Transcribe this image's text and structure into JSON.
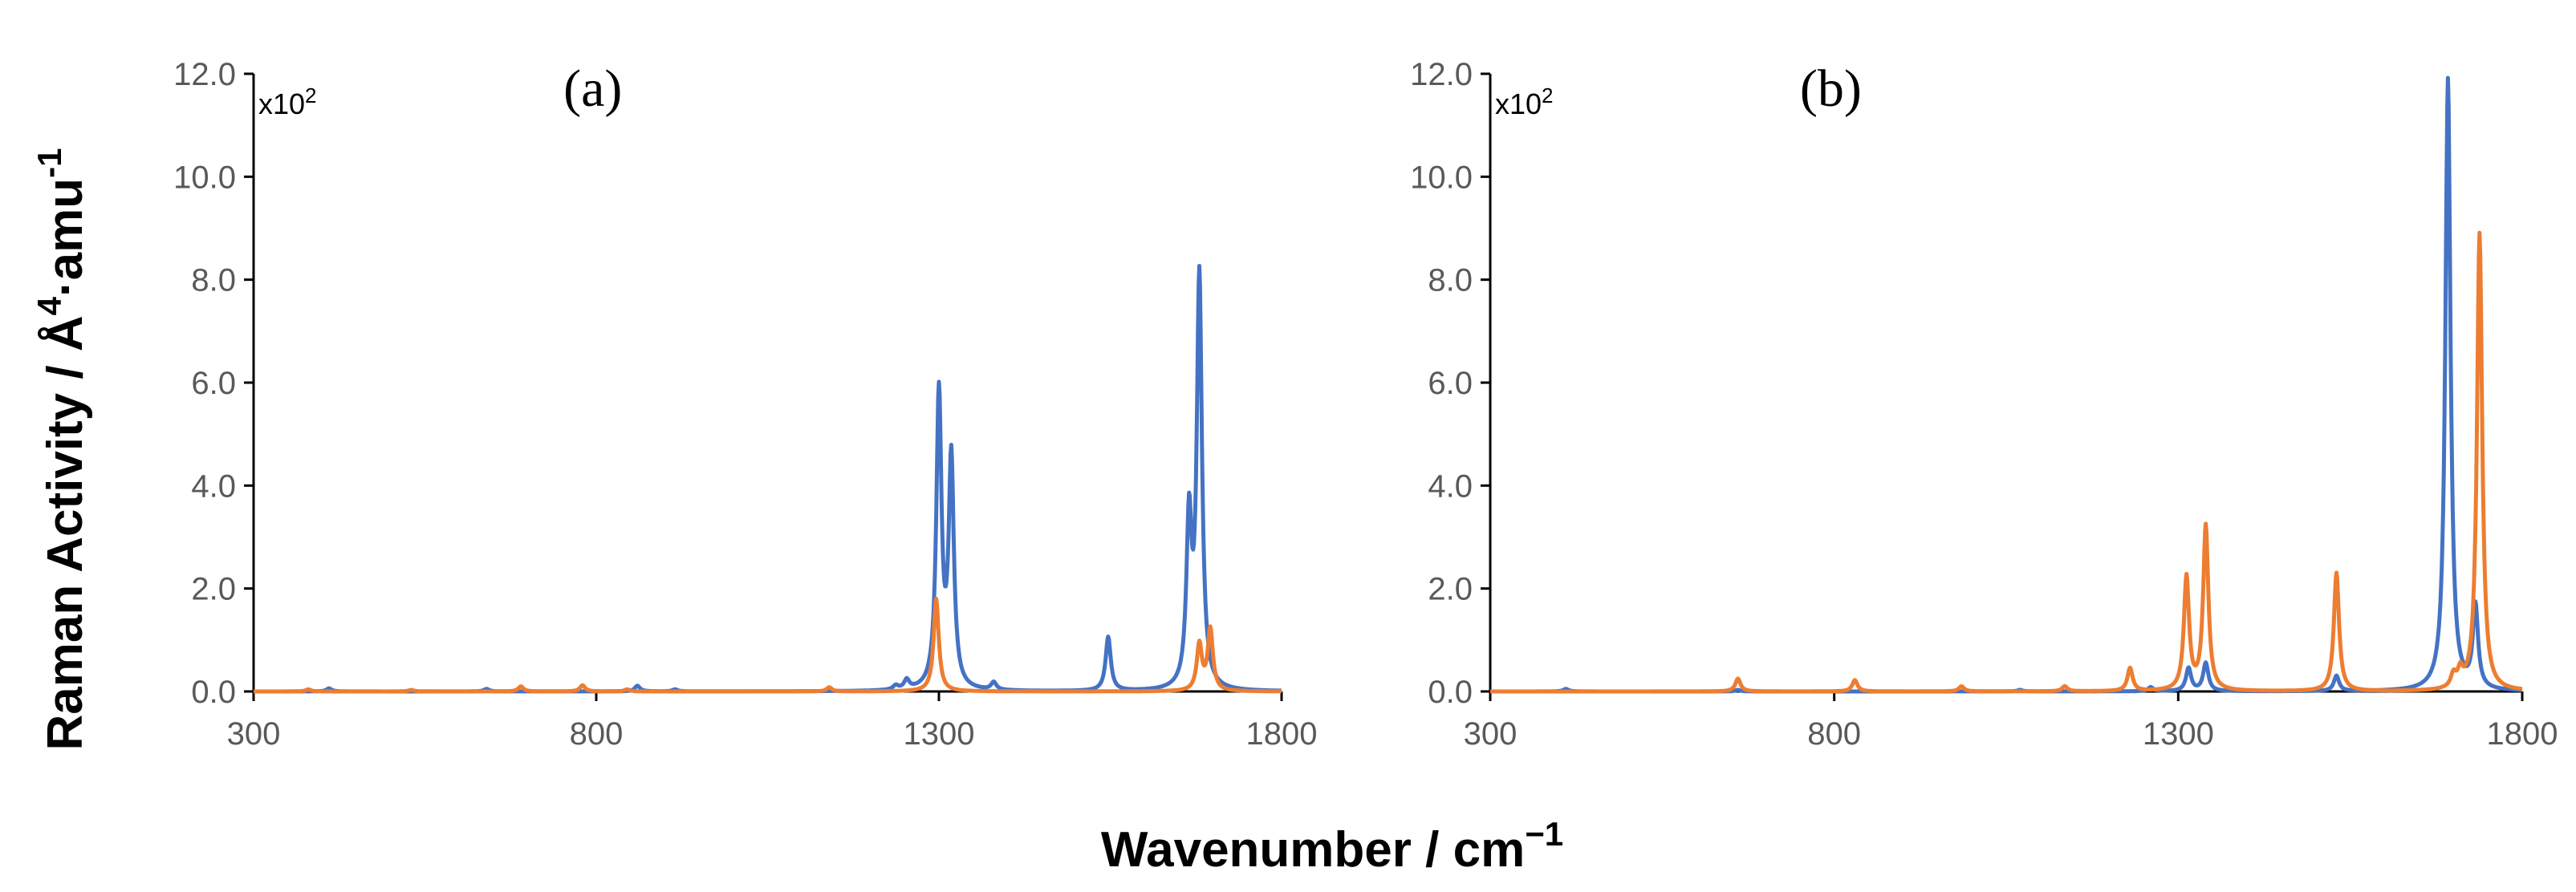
{
  "figure": {
    "ylabel_main": "Raman Activity / Å",
    "ylabel_sup1": "4",
    "ylabel_mid": "·amu",
    "ylabel_sup2": "-1",
    "xlabel_main": "Wavenumber / cm",
    "xlabel_sup": "−1"
  },
  "chart_data": [
    {
      "type": "line",
      "panel_label": "(a)",
      "scale_base": "x10",
      "scale_exp": "2",
      "xlim": [
        300,
        1800
      ],
      "ylim": [
        0,
        12
      ],
      "x_ticks": [
        "300",
        "800",
        "1300",
        "1800"
      ],
      "y_ticks": [
        "0.0",
        "2.0",
        "4.0",
        "6.0",
        "8.0",
        "10.0",
        "12.0"
      ],
      "grid": false,
      "series": [
        {
          "color": "#4472C4",
          "peaks": [
            [
              410,
              0.06
            ],
            [
              640,
              0.05
            ],
            [
              860,
              0.11
            ],
            [
              915,
              0.04
            ],
            [
              1237,
              0.08
            ],
            [
              1253,
              0.18
            ],
            [
              1300,
              5.75
            ],
            [
              1318,
              4.45
            ],
            [
              1380,
              0.15
            ],
            [
              1547,
              1.05
            ],
            [
              1665,
              3.2
            ],
            [
              1680,
              8.0
            ]
          ]
        },
        {
          "color": "#ED7D31",
          "peaks": [
            [
              380,
              0.04
            ],
            [
              530,
              0.03
            ],
            [
              690,
              0.1
            ],
            [
              780,
              0.12
            ],
            [
              845,
              0.04
            ],
            [
              1140,
              0.08
            ],
            [
              1296,
              1.8
            ],
            [
              1680,
              0.9
            ],
            [
              1696,
              1.2
            ]
          ]
        }
      ]
    },
    {
      "type": "line",
      "panel_label": "(b)",
      "scale_base": "x10",
      "scale_exp": "2",
      "xlim": [
        300,
        1800
      ],
      "ylim": [
        0,
        12
      ],
      "x_ticks": [
        "300",
        "800",
        "1300",
        "1800"
      ],
      "y_ticks": [
        "0.0",
        "2.0",
        "4.0",
        "6.0",
        "8.0",
        "10.0",
        "12.0"
      ],
      "grid": false,
      "series": [
        {
          "color": "#4472C4",
          "peaks": [
            [
              410,
              0.05
            ],
            [
              660,
              0.03
            ],
            [
              1070,
              0.03
            ],
            [
              1260,
              0.08
            ],
            [
              1315,
              0.45
            ],
            [
              1340,
              0.55
            ],
            [
              1530,
              0.3
            ],
            [
              1692,
              11.9
            ],
            [
              1732,
              1.6
            ]
          ]
        },
        {
          "color": "#ED7D31",
          "peaks": [
            [
              660,
              0.25
            ],
            [
              830,
              0.22
            ],
            [
              985,
              0.1
            ],
            [
              1135,
              0.1
            ],
            [
              1230,
              0.45
            ],
            [
              1312,
              2.2
            ],
            [
              1340,
              3.2
            ],
            [
              1530,
              2.3
            ],
            [
              1700,
              0.25
            ],
            [
              1710,
              0.3
            ],
            [
              1738,
              8.9
            ]
          ]
        }
      ]
    }
  ]
}
